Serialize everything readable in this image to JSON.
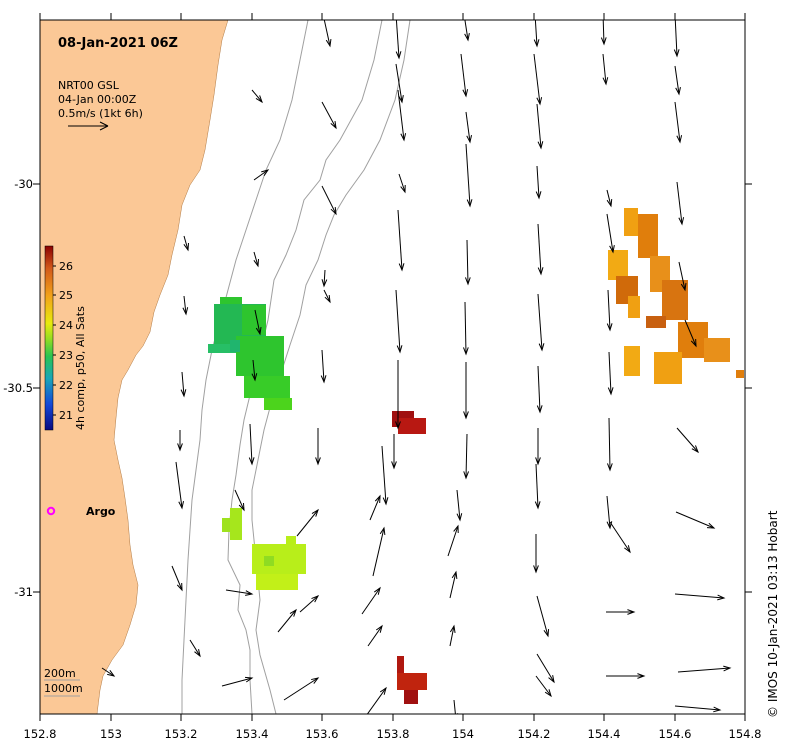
{
  "map": {
    "title": "08-Jan-2021 06Z",
    "legend_lines": [
      "NRT00 GSL",
      "04-Jan 00:00Z",
      "0.5m/s (1kt 6h)"
    ],
    "colorbar": {
      "label": "4h comp, p50, All Sats",
      "ticks": [
        "26",
        "25",
        "24",
        "23",
        "22",
        "21"
      ]
    },
    "argo_label": "Argo",
    "contour_labels": [
      "200m",
      "1000m"
    ],
    "credit": "© IMOS 10-Jan-2021 03:13 Hobart",
    "x_ticks": [
      "152.8",
      "153",
      "153.2",
      "153.4",
      "153.6",
      "153.8",
      "154",
      "154.2",
      "154.4",
      "154.6",
      "154.8"
    ],
    "y_ticks": [
      "-30",
      "-30.5",
      "-31"
    ],
    "colors": {
      "land": "#fbc896",
      "warm": "#e07e0c",
      "hot": "#a01010",
      "green": "#2ec52e",
      "lime": "#b8ee1a",
      "argo": "#ff00ff"
    },
    "icons": {
      "argo": "argo-float-marker-icon",
      "vector": "current-vector-arrow-icon"
    }
  }
}
